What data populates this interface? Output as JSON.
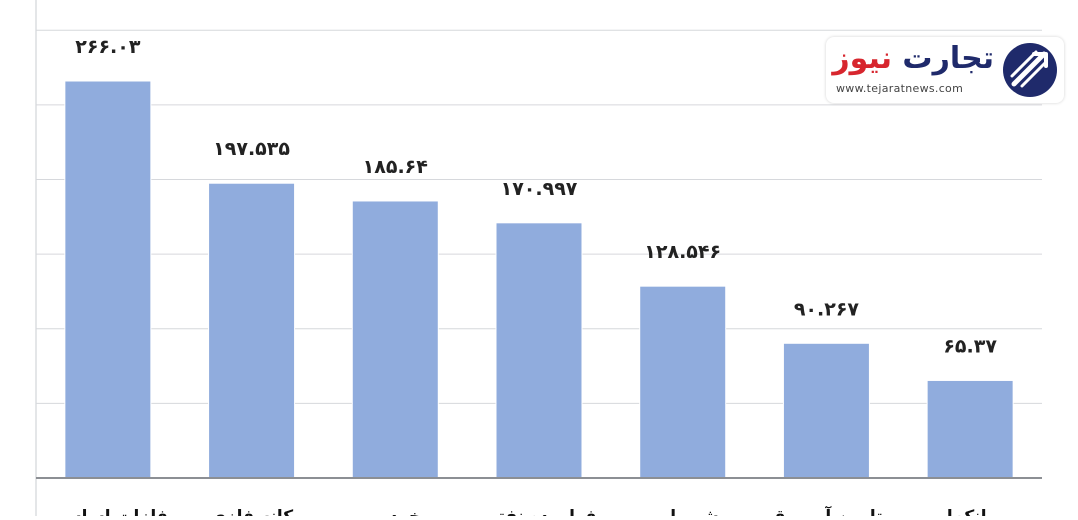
{
  "chart_data": {
    "type": "bar",
    "categories": [
      "فلزات اساسی",
      "کانه فلزی",
      "خودرو",
      "فراورده نفتی",
      "شیمیایی",
      "تامین آب برق",
      "بانکها"
    ],
    "values": [
      266.03,
      197.535,
      185.64,
      170.997,
      128.546,
      90.267,
      65.37
    ],
    "data_labels": [
      "۲۶۶.۰۳",
      "۱۹۷.۵۳۵",
      "۱۸۵.۶۴",
      "۱۷۰.۹۹۷",
      "۱۲۸.۵۴۶",
      "۹۰.۲۶۷",
      "۶۵.۳۷"
    ],
    "ylim": [
      0,
      300
    ],
    "gridlines": [
      50,
      100,
      150,
      200,
      250,
      300
    ],
    "grid": true,
    "legend": "none",
    "bar_color": "#90acdd"
  },
  "logo": {
    "word_1": "تجارت",
    "word_2": "نیوز",
    "url": "www.tejaratnews.com",
    "colors": {
      "primary": "#1f2a6b",
      "accent": "#d7262e"
    }
  }
}
